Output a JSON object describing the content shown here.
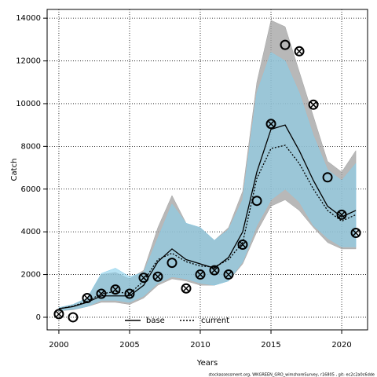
{
  "chart_data": {
    "type": "line",
    "xlabel": "Years",
    "ylabel": "Catch",
    "footer": "stockassessment.org, WKGREEN_GRO_wimshoreSurvey, r16805 , git: ec2c2a0c6dde",
    "x": [
      2000,
      2001,
      2002,
      2003,
      2004,
      2005,
      2006,
      2007,
      2008,
      2009,
      2010,
      2011,
      2012,
      2013,
      2014,
      2015,
      2016,
      2017,
      2018,
      2019,
      2020,
      2021
    ],
    "series": [
      {
        "name": "base",
        "color": "#000000",
        "dash": false,
        "band_color": "#a0a0a0",
        "values": [
          400,
          500,
          700,
          1000,
          1000,
          1000,
          1500,
          2600,
          3200,
          2700,
          2500,
          2300,
          2800,
          4000,
          6800,
          8800,
          9000,
          7800,
          6400,
          5200,
          4700,
          5000
        ],
        "upper": [
          450,
          600,
          900,
          2000,
          2100,
          1800,
          2200,
          4200,
          5700,
          4400,
          4200,
          3600,
          4200,
          5900,
          11000,
          13900,
          13600,
          11500,
          9400,
          7300,
          6800,
          7800
        ],
        "lower": [
          300,
          350,
          500,
          700,
          700,
          600,
          900,
          1500,
          1800,
          1700,
          1500,
          1500,
          1700,
          2500,
          4000,
          5200,
          5500,
          5000,
          4200,
          3500,
          3200,
          3200
        ]
      },
      {
        "name": "current",
        "color": "#000000",
        "dash": true,
        "band_color": "#87ceeb",
        "values": [
          400,
          520,
          750,
          1100,
          1200,
          1100,
          1700,
          2700,
          3000,
          2600,
          2400,
          2350,
          2700,
          3500,
          6500,
          7900,
          8050,
          7200,
          6000,
          5000,
          4500,
          4800
        ],
        "upper": [
          450,
          600,
          900,
          2050,
          2300,
          1900,
          2100,
          3700,
          5300,
          4400,
          4200,
          3600,
          4100,
          5500,
          10500,
          12400,
          12000,
          10500,
          8500,
          6900,
          6400,
          7200
        ],
        "lower": [
          300,
          380,
          500,
          800,
          800,
          700,
          1000,
          1600,
          1900,
          1800,
          1600,
          1500,
          1700,
          2600,
          4300,
          5500,
          6000,
          5400,
          4300,
          3700,
          3300,
          3300
        ]
      }
    ],
    "observed": {
      "values": [
        150,
        0,
        900,
        1100,
        1300,
        1100,
        1850,
        1900,
        2550,
        1350,
        2000,
        2200,
        2000,
        3400,
        5450,
        9050,
        12750,
        12450,
        9950,
        6550,
        4800,
        3950
      ],
      "crossed": [
        true,
        false,
        true,
        true,
        true,
        true,
        true,
        true,
        false,
        true,
        true,
        true,
        true,
        true,
        false,
        true,
        false,
        true,
        true,
        false,
        true,
        true
      ]
    },
    "xlim": [
      1999.17,
      2021.83
    ],
    "ylim": [
      -590,
      14410
    ],
    "xticks": [
      2000,
      2005,
      2010,
      2015,
      2020
    ],
    "yticks": [
      0,
      2000,
      4000,
      6000,
      8000,
      10000,
      12000,
      14000
    ],
    "grid": true,
    "legend": "bottom"
  }
}
